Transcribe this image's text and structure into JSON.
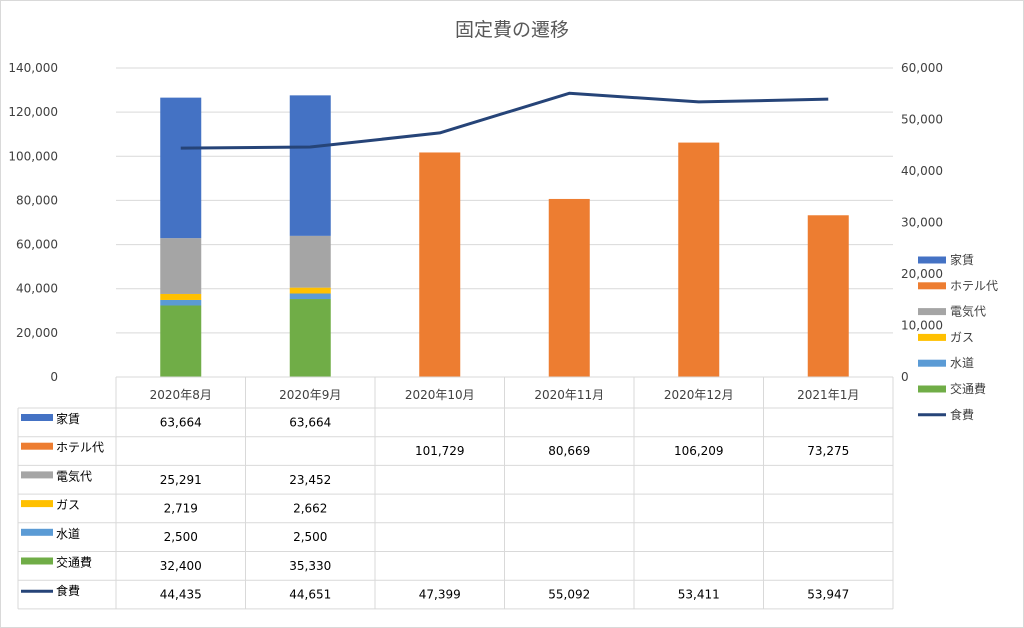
{
  "chart_data": {
    "type": "bar",
    "title": "固定費の遷移",
    "categories": [
      "2020年8月",
      "2020年9月",
      "2020年10月",
      "2020年11月",
      "2020年12月",
      "2021年1月"
    ],
    "stacking": "stacked",
    "y_left": {
      "min": 0,
      "max": 140000,
      "step": 20000,
      "ticks": [
        "0",
        "20,000",
        "40,000",
        "60,000",
        "80,000",
        "100,000",
        "120,000",
        "140,000"
      ]
    },
    "y_right": {
      "min": 0,
      "max": 60000,
      "step": 10000,
      "ticks": [
        "0",
        "10,000",
        "20,000",
        "30,000",
        "40,000",
        "50,000",
        "60,000"
      ]
    },
    "grid": true,
    "legend_position": "right",
    "data_table": true,
    "series": [
      {
        "name": "家賃",
        "kind": "bar",
        "axis": "left",
        "color": "#4472C4",
        "values": [
          63664,
          63664,
          null,
          null,
          null,
          null
        ],
        "labels": [
          "63,664",
          "63,664",
          "",
          "",
          "",
          ""
        ]
      },
      {
        "name": "ホテル代",
        "kind": "bar",
        "axis": "left",
        "color": "#ED7D31",
        "values": [
          null,
          null,
          101729,
          80669,
          106209,
          73275
        ],
        "labels": [
          "",
          "",
          "101,729",
          "80,669",
          "106,209",
          "73,275"
        ]
      },
      {
        "name": "電気代",
        "kind": "bar",
        "axis": "left",
        "color": "#A5A5A5",
        "values": [
          25291,
          23452,
          null,
          null,
          null,
          null
        ],
        "labels": [
          "25,291",
          "23,452",
          "",
          "",
          "",
          ""
        ]
      },
      {
        "name": "ガス",
        "kind": "bar",
        "axis": "left",
        "color": "#FFC000",
        "values": [
          2719,
          2662,
          null,
          null,
          null,
          null
        ],
        "labels": [
          "2,719",
          "2,662",
          "",
          "",
          "",
          ""
        ]
      },
      {
        "name": "水道",
        "kind": "bar",
        "axis": "left",
        "color": "#5B9BD5",
        "values": [
          2500,
          2500,
          null,
          null,
          null,
          null
        ],
        "labels": [
          "2,500",
          "2,500",
          "",
          "",
          "",
          ""
        ]
      },
      {
        "name": "交通費",
        "kind": "bar",
        "axis": "left",
        "color": "#70AD47",
        "values": [
          32400,
          35330,
          null,
          null,
          null,
          null
        ],
        "labels": [
          "32,400",
          "35,330",
          "",
          "",
          "",
          ""
        ]
      },
      {
        "name": "食費",
        "kind": "line",
        "axis": "right",
        "color": "#264478",
        "values": [
          44435,
          44651,
          47399,
          55092,
          53411,
          53947
        ],
        "labels": [
          "44,435",
          "44,651",
          "47,399",
          "55,092",
          "53,411",
          "53,947"
        ]
      }
    ]
  }
}
